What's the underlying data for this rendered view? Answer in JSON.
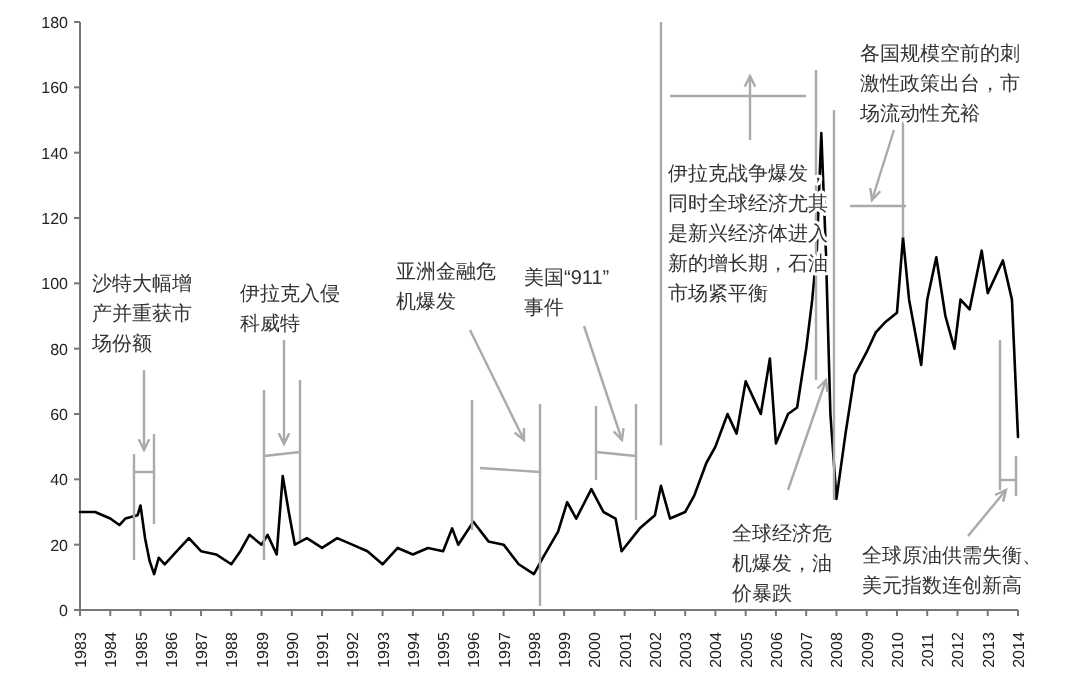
{
  "chart_data": {
    "type": "line",
    "x": [
      1983,
      1983.5,
      1984,
      1984.3,
      1984.5,
      1984.9,
      1985.0,
      1985.15,
      1985.3,
      1985.45,
      1985.6,
      1985.8,
      1986.2,
      1986.6,
      1987,
      1987.5,
      1988,
      1988.3,
      1988.6,
      1989,
      1989.2,
      1989.5,
      1989.7,
      1989.9,
      1990.1,
      1990.5,
      1991,
      1991.5,
      1992,
      1992.5,
      1993,
      1993.5,
      1994,
      1994.5,
      1995,
      1995.3,
      1995.5,
      1996,
      1996.5,
      1997,
      1997.5,
      1998,
      1998.3,
      1998.8,
      1999.1,
      1999.4,
      1999.9,
      2000.3,
      2000.7,
      2000.9,
      2001.5,
      2002,
      2002.2,
      2002.5,
      2003,
      2003.3,
      2003.7,
      2004,
      2004.4,
      2004.7,
      2005,
      2005.5,
      2005.8,
      2006.0,
      2006.4,
      2006.7,
      2007.0,
      2007.2,
      2007.35,
      2007.5,
      2007.65,
      2007.8,
      2008.0,
      2008.3,
      2008.6,
      2009.0,
      2009.3,
      2009.6,
      2010.0,
      2010.2,
      2010.4,
      2010.8,
      2011.0,
      2011.3,
      2011.6,
      2011.9,
      2012.1,
      2012.4,
      2012.8,
      2013.0,
      2013.5,
      2013.8,
      2014.0
    ],
    "series": [
      {
        "color": "#000000",
        "values": [
          30,
          30,
          28,
          26,
          28,
          29,
          32,
          22,
          15,
          11,
          16,
          14,
          18,
          22,
          18,
          17,
          14,
          18,
          23,
          20,
          23,
          17,
          41,
          30,
          20,
          22,
          19,
          22,
          20,
          18,
          14,
          19,
          17,
          19,
          18,
          25,
          20,
          27,
          21,
          20,
          14,
          11,
          16,
          24,
          33,
          28,
          37,
          30,
          28,
          18,
          25,
          29,
          38,
          28,
          30,
          35,
          45,
          50,
          60,
          54,
          70,
          60,
          77,
          51,
          60,
          62,
          80,
          95,
          110,
          146,
          110,
          60,
          34,
          54,
          72,
          79,
          85,
          88,
          91,
          114,
          95,
          75,
          95,
          108,
          90,
          80,
          95,
          92,
          110,
          97,
          107,
          95,
          53
        ]
      }
    ],
    "xlim": [
      1983,
      2014
    ],
    "xticks": [
      1983,
      1984,
      1985,
      1986,
      1987,
      1988,
      1989,
      1990,
      1991,
      1992,
      1993,
      1994,
      1995,
      1996,
      1997,
      1998,
      1999,
      2000,
      2001,
      2002,
      2003,
      2004,
      2005,
      2006,
      2007,
      2008,
      2009,
      2010,
      2011,
      2012,
      2013,
      2014
    ],
    "ylim": [
      0,
      180
    ],
    "yticks": [
      0,
      20,
      40,
      60,
      80,
      100,
      120,
      140,
      160,
      180
    ],
    "ref_lines": [
      {
        "axis": "x",
        "value": 2002.2,
        "color": "#aaaaaa"
      }
    ],
    "grid": false,
    "marker": "none",
    "line_style": "solid",
    "annotations": [
      "沙特大幅增产并重获市场份额",
      "伊拉克入侵科威特",
      "亚洲金融危机爆发",
      "美国“911”事件",
      "伊拉克战争爆发，同时全球经济尤其是新兴经济体进入新的增长期，石油市场紧平衡",
      "全球经济危机爆发，油价暴跌",
      {
        "text": "各国规模空前的刺激性政策出台，市场流动性充裕",
        "x": 2010.2,
        "y": 114
      },
      "全球原油供需失衡、美元指数连创新高"
    ]
  }
}
